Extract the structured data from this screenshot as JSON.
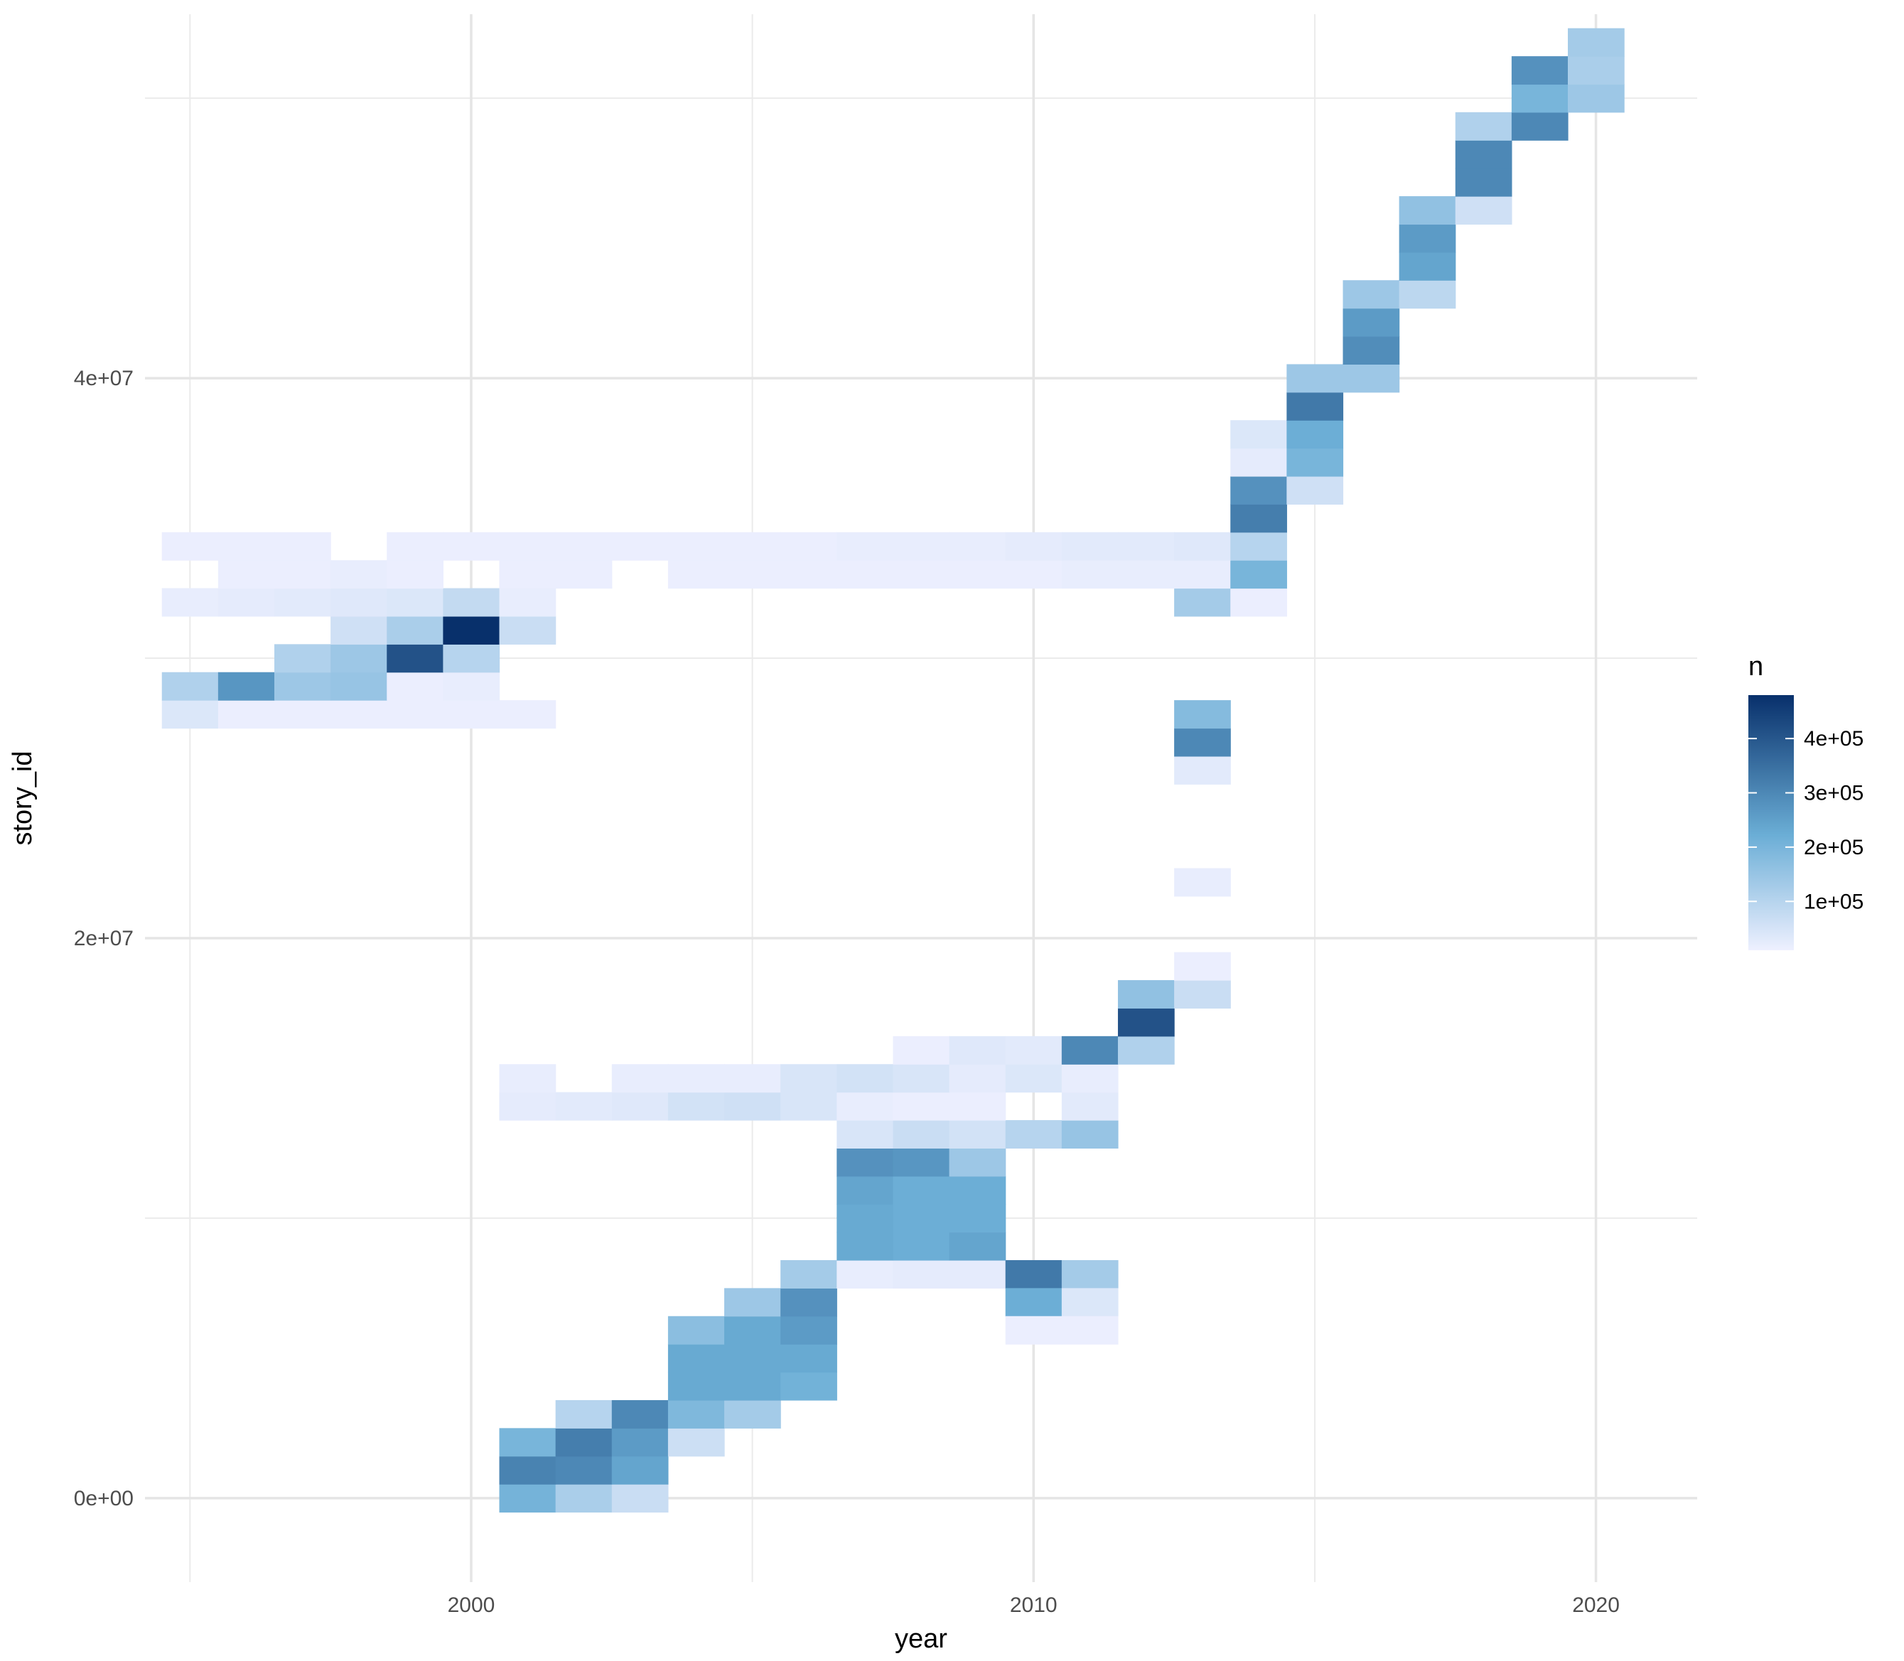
{
  "chart_data": {
    "type": "heatmap",
    "title": "",
    "xlabel": "year",
    "ylabel": "story_id",
    "x_ticks": [
      2000,
      2010,
      2020
    ],
    "x_tick_labels": [
      "2000",
      "2010",
      "2020"
    ],
    "y_ticks": [
      0,
      20000000,
      40000000
    ],
    "y_tick_labels": [
      "0e+00",
      "2e+07",
      "4e+07"
    ],
    "xlim": [
      1994.2,
      2021.8
    ],
    "ylim": [
      -3000000,
      53000000
    ],
    "bin_width_years": 1,
    "bin_height": 1000000,
    "grid": true,
    "legend": {
      "title": "n",
      "position": "right",
      "range": [
        10000,
        480000
      ],
      "breaks": [
        100000,
        200000,
        300000,
        400000
      ],
      "break_labels": [
        "1e+05",
        "2e+05",
        "3e+05",
        "4e+05"
      ],
      "color_low": "#eef0ff",
      "color_mid": "#6baed6",
      "color_high": "#08306b"
    },
    "cells": [
      {
        "x": 1995,
        "y": 49000000,
        "n": 0
      },
      {
        "x": 2001,
        "y": 0,
        "n": 205000
      },
      {
        "x": 2002,
        "y": 0,
        "n": 120000
      },
      {
        "x": 2003,
        "y": 0,
        "n": 70000
      },
      {
        "x": 2001,
        "y": 1000000,
        "n": 310000
      },
      {
        "x": 2002,
        "y": 1000000,
        "n": 300000
      },
      {
        "x": 2003,
        "y": 1000000,
        "n": 240000
      },
      {
        "x": 2001,
        "y": 2000000,
        "n": 200000
      },
      {
        "x": 2002,
        "y": 2000000,
        "n": 320000
      },
      {
        "x": 2003,
        "y": 2000000,
        "n": 260000
      },
      {
        "x": 2004,
        "y": 2000000,
        "n": 65000
      },
      {
        "x": 2002,
        "y": 3000000,
        "n": 100000
      },
      {
        "x": 2003,
        "y": 3000000,
        "n": 300000
      },
      {
        "x": 2004,
        "y": 3000000,
        "n": 190000
      },
      {
        "x": 2005,
        "y": 3000000,
        "n": 130000
      },
      {
        "x": 2004,
        "y": 4000000,
        "n": 230000
      },
      {
        "x": 2005,
        "y": 4000000,
        "n": 230000
      },
      {
        "x": 2006,
        "y": 4000000,
        "n": 210000
      },
      {
        "x": 2004,
        "y": 5000000,
        "n": 230000
      },
      {
        "x": 2005,
        "y": 5000000,
        "n": 230000
      },
      {
        "x": 2006,
        "y": 5000000,
        "n": 230000
      },
      {
        "x": 2004,
        "y": 6000000,
        "n": 170000
      },
      {
        "x": 2005,
        "y": 6000000,
        "n": 230000
      },
      {
        "x": 2006,
        "y": 6000000,
        "n": 260000
      },
      {
        "x": 2005,
        "y": 7000000,
        "n": 140000
      },
      {
        "x": 2006,
        "y": 7000000,
        "n": 280000
      },
      {
        "x": 2006,
        "y": 8000000,
        "n": 130000
      },
      {
        "x": 2007,
        "y": 8000000,
        "n": 20000
      },
      {
        "x": 2008,
        "y": 8000000,
        "n": 25000
      },
      {
        "x": 2009,
        "y": 8000000,
        "n": 25000
      },
      {
        "x": 2010,
        "y": 8000000,
        "n": 330000
      },
      {
        "x": 2011,
        "y": 8000000,
        "n": 130000
      },
      {
        "x": 2010,
        "y": 7000000,
        "n": 220000
      },
      {
        "x": 2011,
        "y": 7000000,
        "n": 40000
      },
      {
        "x": 2010,
        "y": 6000000,
        "n": 15000
      },
      {
        "x": 2011,
        "y": 6000000,
        "n": 15000
      },
      {
        "x": 2007,
        "y": 9000000,
        "n": 230000
      },
      {
        "x": 2008,
        "y": 9000000,
        "n": 220000
      },
      {
        "x": 2009,
        "y": 9000000,
        "n": 240000
      },
      {
        "x": 2007,
        "y": 10000000,
        "n": 230000
      },
      {
        "x": 2008,
        "y": 10000000,
        "n": 220000
      },
      {
        "x": 2009,
        "y": 10000000,
        "n": 220000
      },
      {
        "x": 2007,
        "y": 11000000,
        "n": 240000
      },
      {
        "x": 2008,
        "y": 11000000,
        "n": 220000
      },
      {
        "x": 2009,
        "y": 11000000,
        "n": 220000
      },
      {
        "x": 2007,
        "y": 12000000,
        "n": 280000
      },
      {
        "x": 2008,
        "y": 12000000,
        "n": 270000
      },
      {
        "x": 2009,
        "y": 12000000,
        "n": 140000
      },
      {
        "x": 2007,
        "y": 13000000,
        "n": 45000
      },
      {
        "x": 2008,
        "y": 13000000,
        "n": 70000
      },
      {
        "x": 2009,
        "y": 13000000,
        "n": 55000
      },
      {
        "x": 2010,
        "y": 13000000,
        "n": 100000
      },
      {
        "x": 2011,
        "y": 13000000,
        "n": 150000
      },
      {
        "x": 2001,
        "y": 14000000,
        "n": 25000
      },
      {
        "x": 2002,
        "y": 14000000,
        "n": 30000
      },
      {
        "x": 2003,
        "y": 14000000,
        "n": 35000
      },
      {
        "x": 2004,
        "y": 14000000,
        "n": 55000
      },
      {
        "x": 2005,
        "y": 14000000,
        "n": 60000
      },
      {
        "x": 2006,
        "y": 14000000,
        "n": 45000
      },
      {
        "x": 2007,
        "y": 14000000,
        "n": 20000
      },
      {
        "x": 2008,
        "y": 14000000,
        "n": 15000
      },
      {
        "x": 2009,
        "y": 14000000,
        "n": 15000
      },
      {
        "x": 2011,
        "y": 14000000,
        "n": 30000
      },
      {
        "x": 2001,
        "y": 15000000,
        "n": 20000
      },
      {
        "x": 2003,
        "y": 15000000,
        "n": 20000
      },
      {
        "x": 2004,
        "y": 15000000,
        "n": 20000
      },
      {
        "x": 2005,
        "y": 15000000,
        "n": 20000
      },
      {
        "x": 2006,
        "y": 15000000,
        "n": 45000
      },
      {
        "x": 2007,
        "y": 15000000,
        "n": 55000
      },
      {
        "x": 2008,
        "y": 15000000,
        "n": 45000
      },
      {
        "x": 2009,
        "y": 15000000,
        "n": 25000
      },
      {
        "x": 2010,
        "y": 15000000,
        "n": 40000
      },
      {
        "x": 2011,
        "y": 15000000,
        "n": 20000
      },
      {
        "x": 2008,
        "y": 16000000,
        "n": 15000
      },
      {
        "x": 2009,
        "y": 16000000,
        "n": 35000
      },
      {
        "x": 2010,
        "y": 16000000,
        "n": 30000
      },
      {
        "x": 2011,
        "y": 16000000,
        "n": 300000
      },
      {
        "x": 2012,
        "y": 16000000,
        "n": 110000
      },
      {
        "x": 2012,
        "y": 17000000,
        "n": 410000
      },
      {
        "x": 2012,
        "y": 18000000,
        "n": 160000
      },
      {
        "x": 2013,
        "y": 18000000,
        "n": 70000
      },
      {
        "x": 2013,
        "y": 19000000,
        "n": 15000
      },
      {
        "x": 2013,
        "y": 22000000,
        "n": 20000
      },
      {
        "x": 2013,
        "y": 26000000,
        "n": 30000
      },
      {
        "x": 2013,
        "y": 27000000,
        "n": 300000
      },
      {
        "x": 2013,
        "y": 28000000,
        "n": 180000
      },
      {
        "x": 1995,
        "y": 28000000,
        "n": 40000
      },
      {
        "x": 1996,
        "y": 28000000,
        "n": 15000
      },
      {
        "x": 1997,
        "y": 28000000,
        "n": 15000
      },
      {
        "x": 1998,
        "y": 28000000,
        "n": 15000
      },
      {
        "x": 1999,
        "y": 28000000,
        "n": 15000
      },
      {
        "x": 2000,
        "y": 28000000,
        "n": 15000
      },
      {
        "x": 2001,
        "y": 28000000,
        "n": 15000
      },
      {
        "x": 1995,
        "y": 29000000,
        "n": 110000
      },
      {
        "x": 1996,
        "y": 29000000,
        "n": 270000
      },
      {
        "x": 1997,
        "y": 29000000,
        "n": 140000
      },
      {
        "x": 1998,
        "y": 29000000,
        "n": 150000
      },
      {
        "x": 1999,
        "y": 29000000,
        "n": 15000
      },
      {
        "x": 2000,
        "y": 29000000,
        "n": 20000
      },
      {
        "x": 1997,
        "y": 30000000,
        "n": 110000
      },
      {
        "x": 1998,
        "y": 30000000,
        "n": 140000
      },
      {
        "x": 1999,
        "y": 30000000,
        "n": 410000
      },
      {
        "x": 2000,
        "y": 30000000,
        "n": 100000
      },
      {
        "x": 1998,
        "y": 31000000,
        "n": 60000
      },
      {
        "x": 1999,
        "y": 31000000,
        "n": 120000
      },
      {
        "x": 2000,
        "y": 31000000,
        "n": 480000
      },
      {
        "x": 2001,
        "y": 31000000,
        "n": 70000
      },
      {
        "x": 1995,
        "y": 32000000,
        "n": 20000
      },
      {
        "x": 1996,
        "y": 32000000,
        "n": 25000
      },
      {
        "x": 1997,
        "y": 32000000,
        "n": 30000
      },
      {
        "x": 1998,
        "y": 32000000,
        "n": 35000
      },
      {
        "x": 1999,
        "y": 32000000,
        "n": 40000
      },
      {
        "x": 2000,
        "y": 32000000,
        "n": 80000
      },
      {
        "x": 2001,
        "y": 32000000,
        "n": 20000
      },
      {
        "x": 2013,
        "y": 32000000,
        "n": 130000
      },
      {
        "x": 2014,
        "y": 32000000,
        "n": 15000
      },
      {
        "x": 1996,
        "y": 33000000,
        "n": 15000
      },
      {
        "x": 1997,
        "y": 33000000,
        "n": 15000
      },
      {
        "x": 1998,
        "y": 33000000,
        "n": 20000
      },
      {
        "x": 1999,
        "y": 33000000,
        "n": 15000
      },
      {
        "x": 2001,
        "y": 33000000,
        "n": 15000
      },
      {
        "x": 2002,
        "y": 33000000,
        "n": 15000
      },
      {
        "x": 2004,
        "y": 33000000,
        "n": 15000
      },
      {
        "x": 2005,
        "y": 33000000,
        "n": 15000
      },
      {
        "x": 2006,
        "y": 33000000,
        "n": 15000
      },
      {
        "x": 2007,
        "y": 33000000,
        "n": 15000
      },
      {
        "x": 2008,
        "y": 33000000,
        "n": 15000
      },
      {
        "x": 2009,
        "y": 33000000,
        "n": 15000
      },
      {
        "x": 2010,
        "y": 33000000,
        "n": 15000
      },
      {
        "x": 2011,
        "y": 33000000,
        "n": 20000
      },
      {
        "x": 2012,
        "y": 33000000,
        "n": 20000
      },
      {
        "x": 2013,
        "y": 33000000,
        "n": 20000
      },
      {
        "x": 2014,
        "y": 33000000,
        "n": 200000
      },
      {
        "x": 1995,
        "y": 34000000,
        "n": 15000
      },
      {
        "x": 1996,
        "y": 34000000,
        "n": 15000
      },
      {
        "x": 1997,
        "y": 34000000,
        "n": 15000
      },
      {
        "x": 1999,
        "y": 34000000,
        "n": 15000
      },
      {
        "x": 2000,
        "y": 34000000,
        "n": 15000
      },
      {
        "x": 2001,
        "y": 34000000,
        "n": 15000
      },
      {
        "x": 2002,
        "y": 34000000,
        "n": 15000
      },
      {
        "x": 2003,
        "y": 34000000,
        "n": 15000
      },
      {
        "x": 2004,
        "y": 34000000,
        "n": 15000
      },
      {
        "x": 2005,
        "y": 34000000,
        "n": 15000
      },
      {
        "x": 2006,
        "y": 34000000,
        "n": 15000
      },
      {
        "x": 2007,
        "y": 34000000,
        "n": 20000
      },
      {
        "x": 2008,
        "y": 34000000,
        "n": 20000
      },
      {
        "x": 2009,
        "y": 34000000,
        "n": 20000
      },
      {
        "x": 2010,
        "y": 34000000,
        "n": 25000
      },
      {
        "x": 2011,
        "y": 34000000,
        "n": 30000
      },
      {
        "x": 2012,
        "y": 34000000,
        "n": 30000
      },
      {
        "x": 2013,
        "y": 34000000,
        "n": 35000
      },
      {
        "x": 2014,
        "y": 34000000,
        "n": 100000
      },
      {
        "x": 2014,
        "y": 35000000,
        "n": 320000
      },
      {
        "x": 2014,
        "y": 36000000,
        "n": 280000
      },
      {
        "x": 2015,
        "y": 36000000,
        "n": 60000
      },
      {
        "x": 2014,
        "y": 37000000,
        "n": 25000
      },
      {
        "x": 2015,
        "y": 37000000,
        "n": 200000
      },
      {
        "x": 2014,
        "y": 38000000,
        "n": 40000
      },
      {
        "x": 2015,
        "y": 38000000,
        "n": 220000
      },
      {
        "x": 2015,
        "y": 39000000,
        "n": 330000
      },
      {
        "x": 2015,
        "y": 40000000,
        "n": 140000
      },
      {
        "x": 2016,
        "y": 40000000,
        "n": 140000
      },
      {
        "x": 2016,
        "y": 41000000,
        "n": 290000
      },
      {
        "x": 2016,
        "y": 42000000,
        "n": 260000
      },
      {
        "x": 2016,
        "y": 43000000,
        "n": 140000
      },
      {
        "x": 2017,
        "y": 43000000,
        "n": 90000
      },
      {
        "x": 2017,
        "y": 44000000,
        "n": 240000
      },
      {
        "x": 2017,
        "y": 45000000,
        "n": 260000
      },
      {
        "x": 2017,
        "y": 46000000,
        "n": 160000
      },
      {
        "x": 2018,
        "y": 46000000,
        "n": 60000
      },
      {
        "x": 2018,
        "y": 47000000,
        "n": 300000
      },
      {
        "x": 2018,
        "y": 48000000,
        "n": 300000
      },
      {
        "x": 2018,
        "y": 49000000,
        "n": 110000
      },
      {
        "x": 2019,
        "y": 49000000,
        "n": 300000
      },
      {
        "x": 2019,
        "y": 50000000,
        "n": 200000
      },
      {
        "x": 2020,
        "y": 50000000,
        "n": 140000
      },
      {
        "x": 2019,
        "y": 51000000,
        "n": 280000
      },
      {
        "x": 2020,
        "y": 51000000,
        "n": 120000
      },
      {
        "x": 2020,
        "y": 52000000,
        "n": 130000
      }
    ]
  }
}
